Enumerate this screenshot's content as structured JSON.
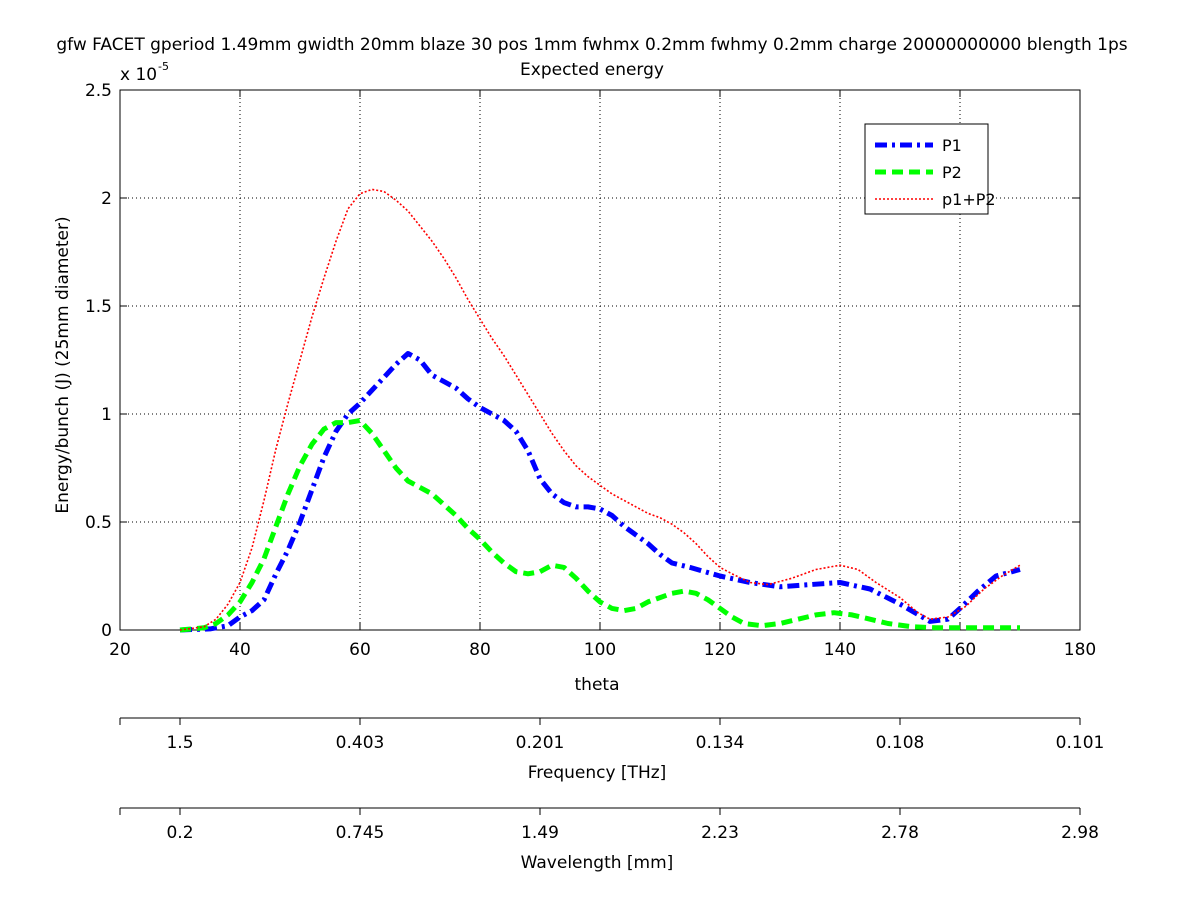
{
  "chart_data": {
    "type": "line",
    "title": "gfw FACET gperiod 1.49mm gwidth 20mm blaze 30 pos 1mm fwhmx 0.2mm fwhmy 0.2mm charge 20000000000 blength 1ps",
    "subtitle": "Expected energy",
    "xlabel": "theta",
    "ylabel": "Energy/bunch (J) (25mm diameter)",
    "y_exponent_label": "x 10",
    "y_exponent_power": "-5",
    "xlim": [
      20,
      180
    ],
    "ylim": [
      0,
      2.5
    ],
    "x_ticks": [
      "20",
      "40",
      "60",
      "80",
      "100",
      "120",
      "140",
      "160",
      "180"
    ],
    "y_ticks": [
      "0",
      "0.5",
      "1",
      "1.5",
      "2",
      "2.5"
    ],
    "grid": true,
    "legend_position": "top-right",
    "series": [
      {
        "name": "P1",
        "color": "#0000ff",
        "style": "dashdot",
        "x": [
          30,
          35,
          38,
          40,
          42,
          44,
          46,
          48,
          50,
          52,
          54,
          56,
          58,
          60,
          62,
          64,
          66,
          68,
          70,
          72,
          74,
          76,
          78,
          80,
          82,
          84,
          86,
          88,
          90,
          92,
          94,
          96,
          98,
          100,
          102,
          104,
          106,
          108,
          110,
          112,
          115,
          120,
          125,
          130,
          135,
          140,
          145,
          150,
          155,
          158,
          160,
          163,
          166,
          170
        ],
        "y": [
          0,
          0.005,
          0.02,
          0.06,
          0.09,
          0.14,
          0.26,
          0.37,
          0.5,
          0.65,
          0.8,
          0.92,
          1.0,
          1.05,
          1.11,
          1.17,
          1.23,
          1.28,
          1.25,
          1.18,
          1.15,
          1.12,
          1.07,
          1.03,
          1.0,
          0.97,
          0.92,
          0.83,
          0.7,
          0.63,
          0.59,
          0.57,
          0.57,
          0.56,
          0.53,
          0.48,
          0.44,
          0.4,
          0.35,
          0.31,
          0.29,
          0.25,
          0.22,
          0.2,
          0.21,
          0.22,
          0.19,
          0.12,
          0.04,
          0.05,
          0.1,
          0.18,
          0.25,
          0.28
        ]
      },
      {
        "name": "P2",
        "color": "#00ff00",
        "style": "dashed",
        "x": [
          30,
          34,
          36,
          38,
          40,
          42,
          44,
          46,
          48,
          50,
          52,
          54,
          56,
          58,
          60,
          62,
          64,
          66,
          68,
          70,
          72,
          74,
          76,
          78,
          80,
          82,
          84,
          86,
          88,
          90,
          92,
          94,
          96,
          98,
          100,
          102,
          104,
          106,
          108,
          110,
          112,
          114,
          116,
          118,
          120,
          122,
          124,
          127,
          130,
          133,
          136,
          139,
          142,
          145,
          148,
          152,
          156,
          160,
          165,
          170
        ],
        "y": [
          0,
          0.01,
          0.03,
          0.07,
          0.13,
          0.22,
          0.33,
          0.48,
          0.63,
          0.76,
          0.86,
          0.93,
          0.96,
          0.96,
          0.97,
          0.91,
          0.83,
          0.75,
          0.69,
          0.66,
          0.63,
          0.58,
          0.53,
          0.47,
          0.42,
          0.36,
          0.31,
          0.27,
          0.26,
          0.27,
          0.3,
          0.29,
          0.24,
          0.18,
          0.13,
          0.1,
          0.09,
          0.1,
          0.13,
          0.15,
          0.17,
          0.18,
          0.17,
          0.14,
          0.1,
          0.06,
          0.03,
          0.02,
          0.03,
          0.05,
          0.07,
          0.08,
          0.07,
          0.05,
          0.03,
          0.015,
          0.01,
          0.01,
          0.01,
          0.01
        ]
      },
      {
        "name": "p1+P2",
        "color": "#ff0000",
        "style": "dotted",
        "x": [
          30,
          34,
          36,
          38,
          40,
          42,
          44,
          46,
          48,
          50,
          52,
          54,
          56,
          58,
          60,
          62,
          64,
          66,
          68,
          70,
          72,
          74,
          76,
          78,
          80,
          82,
          84,
          86,
          88,
          90,
          92,
          94,
          96,
          98,
          100,
          102,
          104,
          106,
          108,
          110,
          112,
          114,
          116,
          118,
          120,
          122,
          125,
          128,
          132,
          136,
          140,
          143,
          146,
          150,
          153,
          155,
          158,
          161,
          164,
          167,
          170
        ],
        "y": [
          0,
          0.015,
          0.05,
          0.12,
          0.22,
          0.38,
          0.6,
          0.84,
          1.05,
          1.25,
          1.45,
          1.63,
          1.8,
          1.95,
          2.02,
          2.04,
          2.03,
          1.99,
          1.94,
          1.87,
          1.8,
          1.72,
          1.63,
          1.53,
          1.44,
          1.35,
          1.27,
          1.18,
          1.09,
          1.0,
          0.91,
          0.83,
          0.76,
          0.71,
          0.67,
          0.63,
          0.6,
          0.57,
          0.54,
          0.52,
          0.49,
          0.45,
          0.4,
          0.34,
          0.29,
          0.26,
          0.22,
          0.21,
          0.24,
          0.28,
          0.3,
          0.28,
          0.22,
          0.15,
          0.08,
          0.05,
          0.06,
          0.11,
          0.19,
          0.25,
          0.3
        ]
      }
    ],
    "secondary_axes": [
      {
        "label": "Frequency [THz]",
        "tick_theta": [
          30,
          60,
          90,
          120,
          150,
          180
        ],
        "tick_labels": [
          "1.5",
          "0.403",
          "0.201",
          "0.134",
          "0.108",
          "0.101"
        ]
      },
      {
        "label": "Wavelength [mm]",
        "tick_theta": [
          30,
          60,
          90,
          120,
          150,
          180
        ],
        "tick_labels": [
          "0.2",
          "0.745",
          "1.49",
          "2.23",
          "2.78",
          "2.98"
        ]
      }
    ]
  }
}
